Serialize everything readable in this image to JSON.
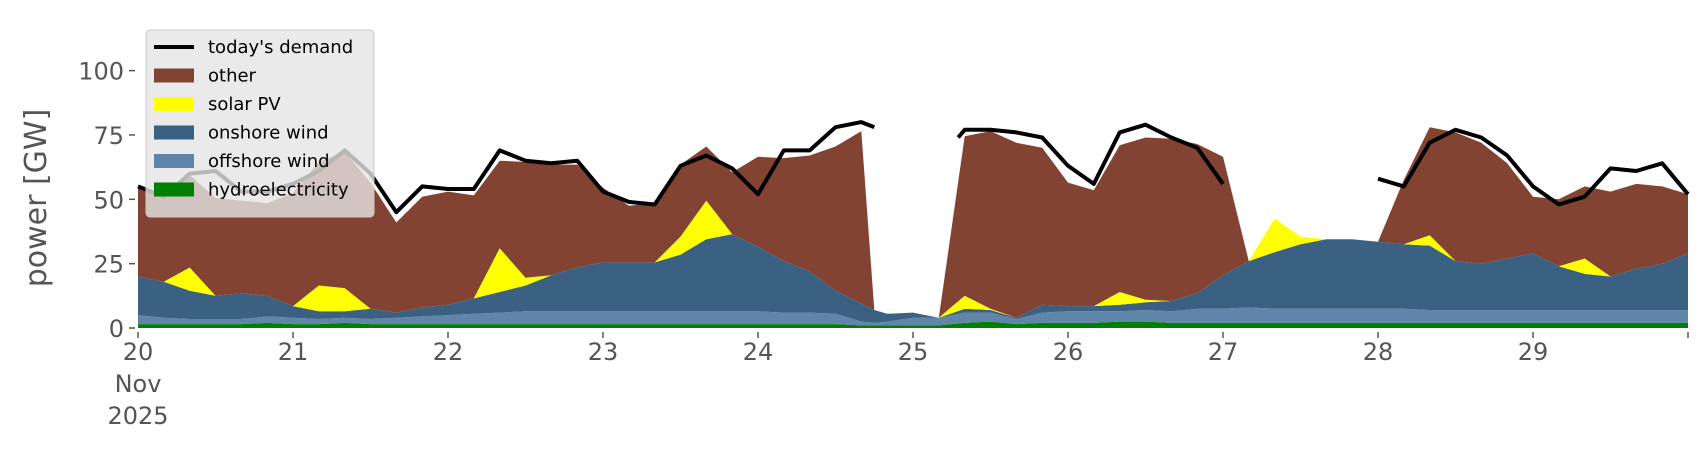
{
  "chart_data": {
    "type": "area",
    "title": "",
    "ylabel": "power [GW]",
    "xlabel": "",
    "ylim": [
      0,
      115
    ],
    "xlim": [
      0,
      240
    ],
    "x_unit": "hours from 20 Nov 2025 00:00",
    "x_ticks": [
      {
        "value": 0,
        "label": "20",
        "sublabels": [
          "Nov",
          "2025"
        ]
      },
      {
        "value": 24,
        "label": "21"
      },
      {
        "value": 48,
        "label": "22"
      },
      {
        "value": 72,
        "label": "23"
      },
      {
        "value": 96,
        "label": "24"
      },
      {
        "value": 120,
        "label": "25"
      },
      {
        "value": 144,
        "label": "26"
      },
      {
        "value": 168,
        "label": "27"
      },
      {
        "value": 192,
        "label": "28"
      },
      {
        "value": 216,
        "label": "29"
      },
      {
        "value": 240,
        "label": ""
      }
    ],
    "y_ticks": [
      0,
      25,
      50,
      75,
      100
    ],
    "grid": false,
    "legend_position": "top-left",
    "legend": [
      "today's demand",
      "other",
      "solar PV",
      "onshore wind",
      "offshore wind",
      "hydroelectricity"
    ],
    "colors": {
      "today's demand": "#000000",
      "other": "#824333",
      "solar PV": "#ffff00",
      "onshore wind": "#3b6182",
      "offshore wind": "#6185a8",
      "hydroelectricity": "#008000"
    },
    "x": [
      0,
      4,
      8,
      12,
      16,
      20,
      24,
      28,
      32,
      36,
      40,
      44,
      48,
      52,
      56,
      60,
      64,
      68,
      72,
      76,
      80,
      84,
      88,
      92,
      96,
      100,
      104,
      108,
      112,
      114,
      116,
      120,
      124,
      128,
      132,
      136,
      140,
      144,
      148,
      152,
      156,
      160,
      164,
      168,
      172,
      176,
      180,
      184,
      188,
      192,
      196,
      200,
      204,
      208,
      212,
      216,
      220,
      224,
      228,
      232,
      236,
      240
    ],
    "series": [
      {
        "name": "hydroelectricity",
        "values": [
          1.5,
          1.5,
          1.5,
          1.5,
          1.5,
          2,
          1.5,
          1.5,
          2,
          1.5,
          1.5,
          1.5,
          1.5,
          1.5,
          1.5,
          1.5,
          1.5,
          1.5,
          1.5,
          1.5,
          1.5,
          1.5,
          1.5,
          1.5,
          1.5,
          1.5,
          1.5,
          1.5,
          1,
          1,
          1,
          1,
          1,
          2,
          2.5,
          1.5,
          2,
          2,
          2,
          2.5,
          2.5,
          2,
          2,
          2,
          2,
          2,
          2,
          2,
          2,
          2,
          2,
          2,
          2,
          2,
          2,
          2,
          2,
          2,
          2,
          2,
          2,
          2
        ]
      },
      {
        "name": "offshore wind",
        "values": [
          3.5,
          2.5,
          2,
          2,
          2,
          2.5,
          2.5,
          2,
          2,
          2,
          2.5,
          3,
          3.5,
          4,
          4.5,
          5,
          5,
          5,
          5,
          5,
          5,
          5,
          5,
          5,
          5,
          4.5,
          4.5,
          4,
          1.5,
          1,
          1.5,
          3,
          3,
          4,
          3.5,
          2,
          4,
          4.5,
          4.5,
          4,
          4.5,
          4.5,
          5.5,
          5.5,
          6,
          5.5,
          5.5,
          5.5,
          5.5,
          5.5,
          5.5,
          5,
          5,
          5,
          5,
          5,
          5,
          5,
          5,
          5,
          5,
          5
        ]
      },
      {
        "name": "onshore wind",
        "values": [
          15,
          14,
          11,
          9,
          10,
          8,
          4.5,
          3,
          2.5,
          4,
          2,
          3.5,
          4,
          6,
          8,
          10,
          14,
          17,
          19,
          19,
          19,
          22,
          28,
          30,
          25,
          20,
          16,
          9,
          7,
          5,
          3,
          2,
          0,
          1.5,
          1,
          0.5,
          3,
          2,
          2,
          2.5,
          3,
          4,
          6,
          13,
          18,
          22,
          25,
          27,
          27,
          26,
          25,
          25,
          19,
          18,
          20,
          22,
          17,
          14,
          13,
          16,
          18,
          22
        ]
      },
      {
        "name": "solar PV",
        "values": [
          0,
          0,
          9,
          0,
          0,
          0,
          0,
          10,
          9,
          0,
          0,
          0,
          0,
          0,
          17,
          3,
          0,
          0,
          0,
          0,
          0,
          7,
          15,
          0,
          0,
          0,
          0,
          0,
          0,
          0,
          0,
          0,
          0,
          5,
          0.5,
          0,
          0,
          0,
          0,
          5,
          1,
          0,
          0,
          0,
          0,
          13,
          3,
          0,
          0,
          0,
          0,
          4,
          0,
          0,
          0,
          0,
          0,
          6,
          0,
          0,
          0,
          0
        ]
      },
      {
        "name": "other",
        "values": [
          35,
          33,
          36,
          38,
          36,
          36,
          44,
          48,
          53,
          49,
          35,
          43,
          44,
          40,
          34,
          45,
          43,
          40,
          29,
          22,
          23,
          28,
          21,
          24,
          35,
          40,
          45,
          56,
          67,
          0,
          0,
          0,
          0,
          62,
          69,
          68,
          61,
          48,
          45,
          57,
          63,
          63,
          58,
          46,
          0,
          0,
          0,
          0,
          0,
          0,
          25,
          42,
          50,
          47,
          37,
          22,
          26,
          28,
          33,
          33,
          30,
          23
        ]
      }
    ],
    "demand": {
      "name": "today's demand",
      "segments": [
        {
          "x": [
            0,
            4,
            8,
            12,
            16,
            20,
            24,
            28,
            32,
            36,
            40,
            44,
            48,
            52,
            56,
            60,
            64,
            68,
            72,
            76,
            80,
            84,
            88,
            92,
            96,
            100,
            104,
            108,
            112,
            114
          ],
          "values": [
            55,
            51,
            60,
            61,
            53,
            53,
            56,
            61,
            69,
            60,
            45,
            55,
            54,
            54,
            69,
            65,
            64,
            65,
            53,
            49,
            48,
            63,
            67,
            62,
            52,
            69,
            69,
            78,
            80,
            78
          ]
        },
        {
          "x": [
            127,
            128,
            132,
            136,
            140,
            144,
            148,
            152,
            156,
            160,
            164,
            168
          ],
          "values": [
            74,
            77,
            77,
            76,
            74,
            63,
            56,
            76,
            79,
            74,
            70,
            56
          ]
        },
        {
          "x": [
            192,
            196,
            200,
            204,
            208,
            212,
            216,
            220,
            224,
            228,
            232,
            236,
            240
          ],
          "values": [
            58,
            55,
            72,
            77,
            74,
            67,
            55,
            48,
            51,
            62,
            61,
            64,
            52
          ]
        }
      ]
    }
  }
}
